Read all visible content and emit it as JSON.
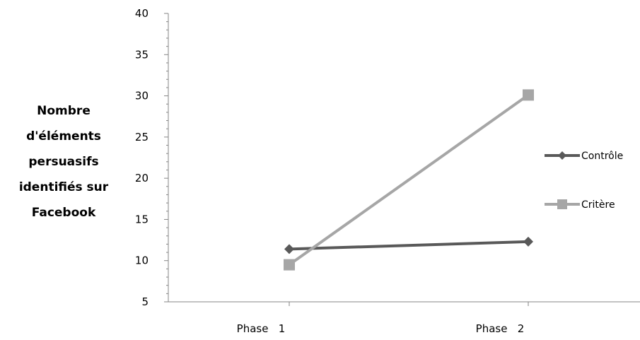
{
  "chart_data": {
    "type": "line",
    "categories": [
      "Phase   1",
      "Phase   2"
    ],
    "series": [
      {
        "name": "Contrôle",
        "values": [
          11.4,
          12.3
        ],
        "color": "#595959",
        "marker": "diamond"
      },
      {
        "name": "Critère",
        "values": [
          9.5,
          30.1
        ],
        "color": "#a6a6a6",
        "marker": "square"
      }
    ],
    "ylabel_lines": [
      "Nombre",
      "d'éléments",
      "persuasifs",
      "identifiés sur",
      "Facebook"
    ],
    "xlabel": "",
    "title": "",
    "ylim": [
      5,
      40
    ],
    "yticks": [
      5,
      10,
      15,
      20,
      25,
      30,
      35,
      40
    ],
    "grid": false,
    "legend": "right"
  }
}
